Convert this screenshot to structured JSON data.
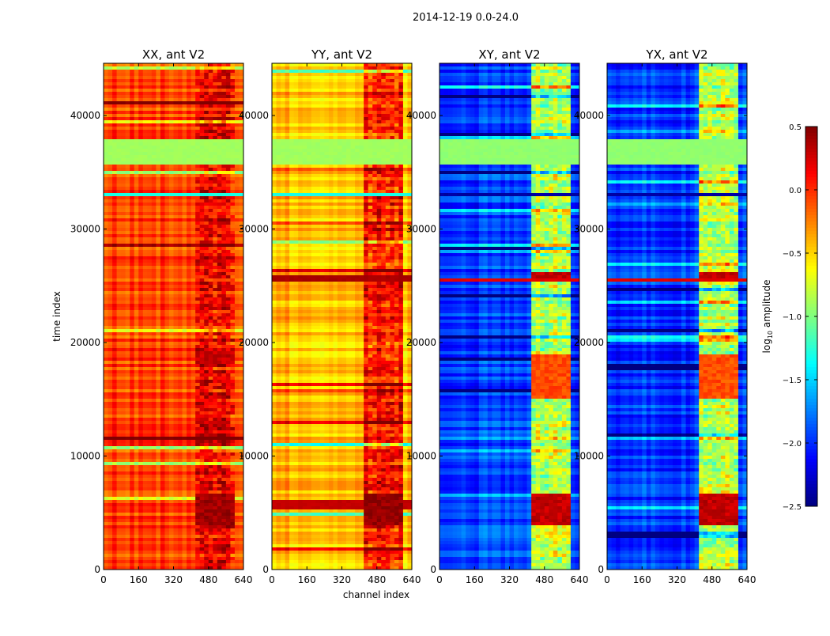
{
  "chart_data": {
    "type": "heatmap",
    "title": "2014-12-19 0.0-24.0",
    "xlabel": "channel index",
    "ylabel": "time index",
    "xlim": [
      0,
      640
    ],
    "ylim": [
      0,
      44600
    ],
    "xticks": [
      "0",
      "160",
      "320",
      "480",
      "640"
    ],
    "yticks": [
      "0",
      "10000",
      "20000",
      "30000",
      "40000"
    ],
    "colorbar": {
      "label": "log10 amplitude",
      "label_main": "log",
      "label_sub": "10",
      "label_rest": " amplitude",
      "range": [
        -2.5,
        0.5
      ],
      "ticks": [
        "0.5",
        "0.0",
        "−0.5",
        "−1.0",
        "−1.5",
        "−2.0",
        "−2.5"
      ],
      "colormap": "jet"
    },
    "panels": [
      {
        "title": "XX, ant V2",
        "base": -0.05,
        "rfi_channels": [
          416,
          600
        ],
        "rfi_value": 0.12,
        "bands": [
          [
            35800,
            37800,
            -0.9
          ],
          [
            33000,
            33300,
            -1.3
          ],
          [
            40900,
            41100,
            -1.1
          ],
          [
            4000,
            6600,
            0.4,
            "rfi"
          ],
          [
            25800,
            26000,
            0.45,
            "rfi"
          ],
          [
            18000,
            19200,
            0.3,
            "rfi"
          ]
        ]
      },
      {
        "title": "YY, ant V2",
        "base": -0.42,
        "rfi_channels": [
          416,
          600
        ],
        "rfi_value": 0.05,
        "bands": [
          [
            35800,
            37800,
            -0.9
          ],
          [
            33000,
            33300,
            -1.3
          ],
          [
            25500,
            25800,
            0.38
          ],
          [
            5200,
            6200,
            0.3
          ],
          [
            4000,
            6600,
            0.45,
            "rfi"
          ]
        ]
      },
      {
        "title": "XY, ant V2",
        "base": -1.95,
        "rfi_channels": [
          416,
          600
        ],
        "rfi_value": -0.85,
        "bands": [
          [
            35800,
            37800,
            -0.95
          ],
          [
            33000,
            33300,
            -2.4
          ],
          [
            25600,
            26100,
            0.3,
            "rfi"
          ],
          [
            3800,
            6600,
            0.3,
            "rfi"
          ],
          [
            15000,
            19000,
            -0.1,
            "rfi"
          ],
          [
            25400,
            25600,
            0.2
          ]
        ]
      },
      {
        "title": "YX, ant V2",
        "base": -1.95,
        "rfi_channels": [
          416,
          600
        ],
        "rfi_value": -0.85,
        "bands": [
          [
            35800,
            37800,
            -0.95
          ],
          [
            33000,
            33300,
            -2.4
          ],
          [
            25600,
            26100,
            0.3,
            "rfi"
          ],
          [
            3800,
            6600,
            0.3,
            "rfi"
          ],
          [
            15000,
            19000,
            -0.1,
            "rfi"
          ],
          [
            25400,
            25600,
            0.2
          ]
        ]
      }
    ]
  }
}
